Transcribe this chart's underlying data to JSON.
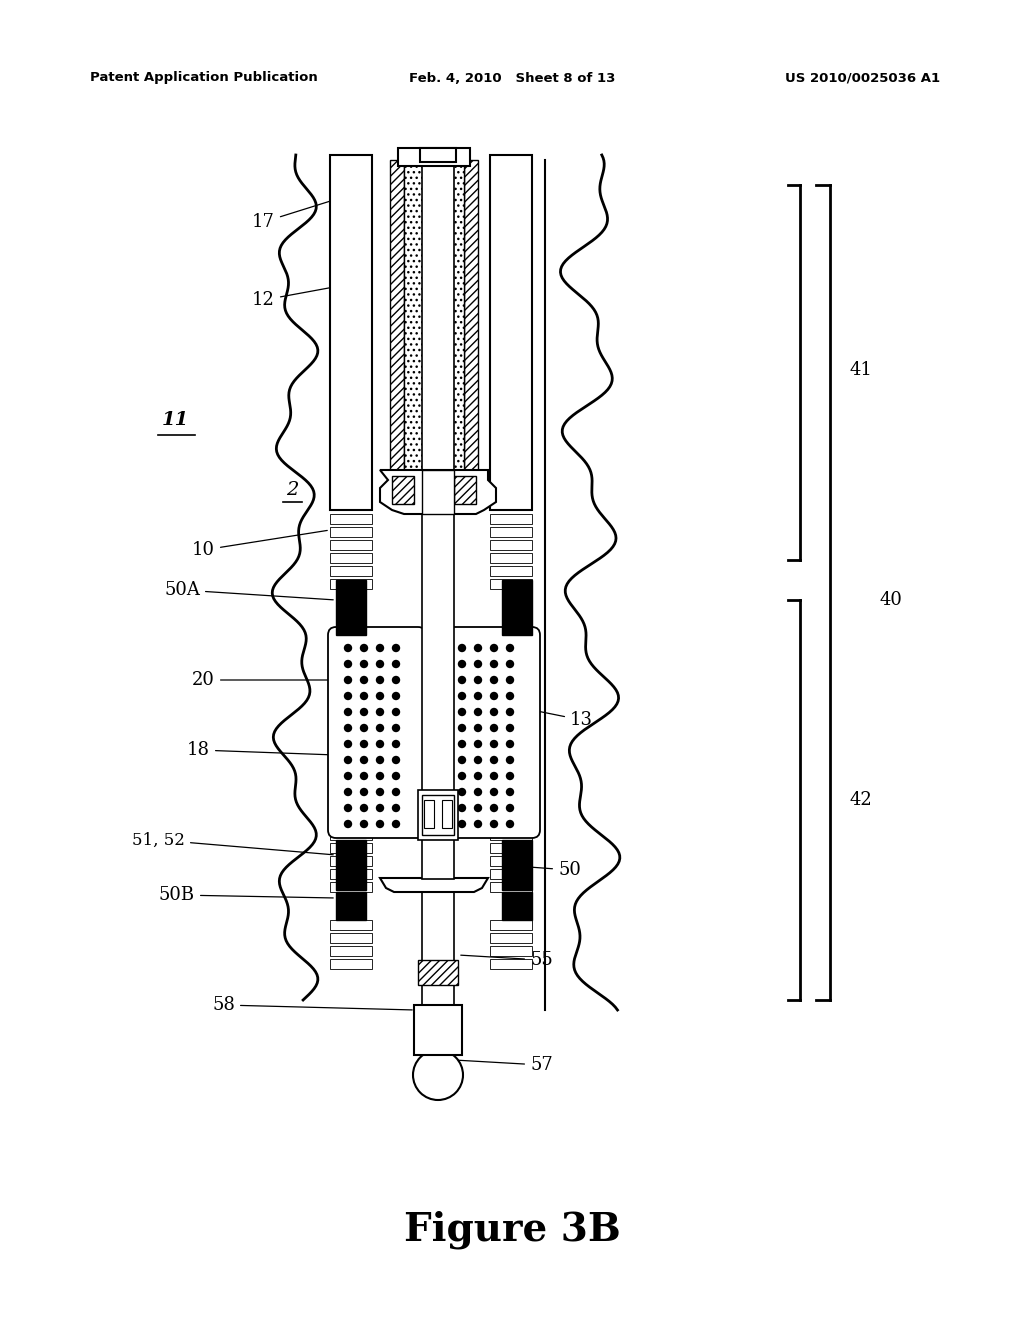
{
  "background_color": "#ffffff",
  "header_left": "Patent Application Publication",
  "header_center": "Feb. 4, 2010   Sheet 8 of 13",
  "header_right": "US 2010/0025036 A1",
  "figure_label": "Figure 3B"
}
